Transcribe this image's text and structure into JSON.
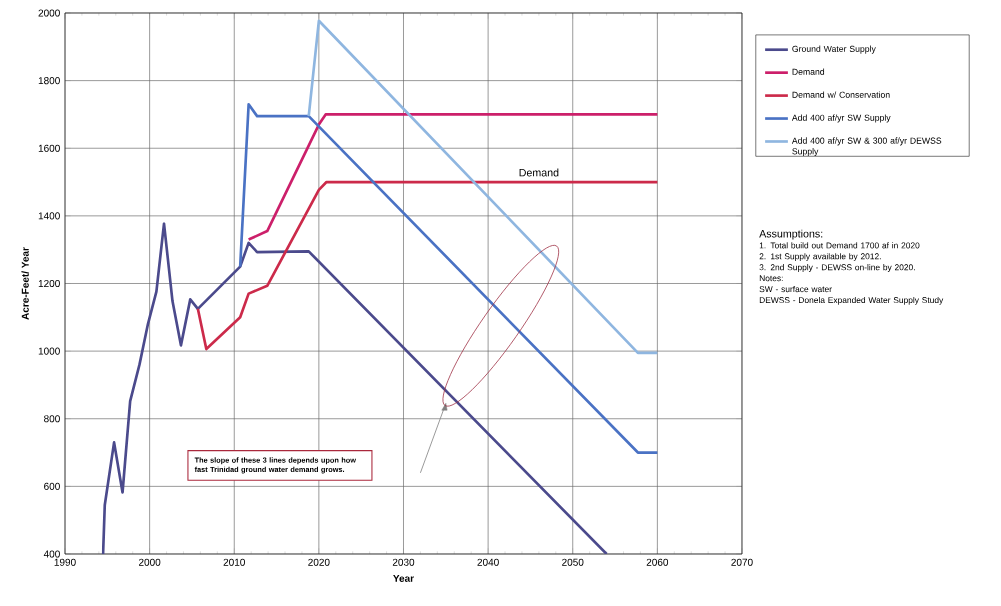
{
  "chart_data": {
    "type": "line",
    "xlabel": "Year",
    "ylabel": "Acre-Feet/ Year",
    "xlim": [
      1990,
      2070
    ],
    "xticks": [
      1990,
      2000,
      2010,
      2020,
      2030,
      2040,
      2050,
      2060,
      2070
    ],
    "ylim": [
      400,
      2000
    ],
    "yticks": [
      400,
      600,
      800,
      1000,
      1200,
      1400,
      1600,
      1800,
      2000
    ],
    "grid": true,
    "legend": "right",
    "marker": "none",
    "line_style": "solid",
    "series": [
      {
        "name": "Ground Water Supply",
        "color": "#4b4a8c",
        "x": [
          1994.5,
          1994.7,
          1995.8,
          1996.8,
          1997.7,
          1998.8,
          1999.8,
          2000.8,
          2001.7,
          2002.7,
          2003.7,
          2004.8,
          2005.7,
          2010.7,
          2011.7,
          2012.7,
          2018.8,
          2054
        ],
        "values": [
          400,
          545,
          730,
          582,
          852,
          960,
          1080,
          1176,
          1377,
          1148,
          1017,
          1153,
          1125,
          1250,
          1320,
          1293,
          1295,
          400
        ]
      },
      {
        "name": "Demand",
        "color": "#cc1f6a",
        "x": [
          2011.7,
          2013.9,
          2020,
          2020.8,
          2060
        ],
        "values": [
          1330,
          1355,
          1670,
          1700,
          1700
        ]
      },
      {
        "name": "Demand w/ Conservation",
        "color": "#cc2a4a",
        "x": [
          2005.7,
          2006.7,
          2010.7,
          2011.7,
          2013.9,
          2020,
          2020.9,
          2060
        ],
        "values": [
          1125,
          1006,
          1100,
          1170,
          1193,
          1477,
          1500,
          1500
        ]
      },
      {
        "name": "Add 400 af/yr SW Supply",
        "color": "#4a72c4",
        "x": [
          2010.7,
          2011.7,
          2012.7,
          2018.8,
          2057.7,
          2060
        ],
        "values": [
          1250,
          1730,
          1695,
          1695,
          700,
          700
        ]
      },
      {
        "name": "Add 400 af/yr SW & 300 af/yr DEWSS Supply",
        "color": "#8fb6e0",
        "x": [
          2018.8,
          2020,
          2057.7,
          2060
        ],
        "values": [
          1695,
          1977,
          995,
          995
        ]
      }
    ],
    "annotations": [
      {
        "text": "Demand",
        "x": 2046,
        "y": 1500
      },
      "The slope of these 3 lines depends upon how fast Trinidad ground water demand grows.",
      "Assumptions:",
      "1. Total build out Demand 1700 af in 2020",
      "2. 1st Supply available by 2012.",
      "3. 2nd Supply - DEWSS on-line by 2020.",
      "Notes:",
      "SW - surface water",
      "DEWSS - Donela Expanded Water Supply Study"
    ]
  }
}
